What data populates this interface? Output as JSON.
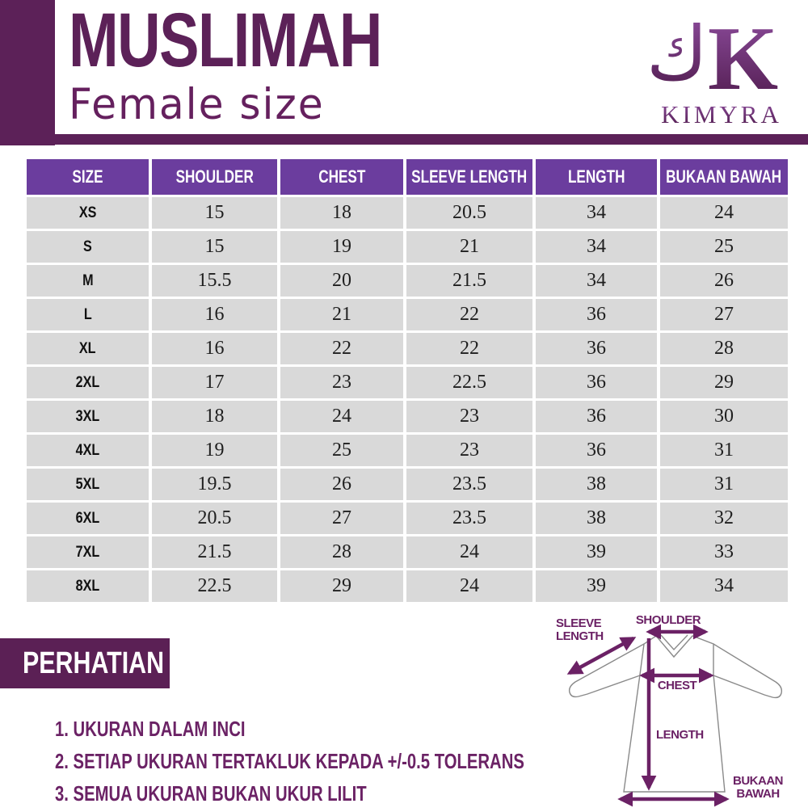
{
  "header": {
    "title": "MUSLIMAH",
    "subtitle": "Female size",
    "brand": "KIMYRA",
    "logo_glyph": "ك",
    "logo_letter": "K"
  },
  "colors": {
    "dark_purple": "#5C2158",
    "table_header_purple": "#6B3D9E",
    "row_gray": "#D9D9D9",
    "notes_purple": "#6B2265",
    "arrow_purple": "#6B2165"
  },
  "table": {
    "columns": [
      "SIZE",
      "SHOULDER",
      "CHEST",
      "SLEEVE LENGTH",
      "LENGTH",
      "BUKAAN BAWAH"
    ],
    "rows": [
      [
        "XS",
        "15",
        "18",
        "20.5",
        "34",
        "24"
      ],
      [
        "S",
        "15",
        "19",
        "21",
        "34",
        "25"
      ],
      [
        "M",
        "15.5",
        "20",
        "21.5",
        "34",
        "26"
      ],
      [
        "L",
        "16",
        "21",
        "22",
        "36",
        "27"
      ],
      [
        "XL",
        "16",
        "22",
        "22",
        "36",
        "28"
      ],
      [
        "2XL",
        "17",
        "23",
        "22.5",
        "36",
        "29"
      ],
      [
        "3XL",
        "18",
        "24",
        "23",
        "36",
        "30"
      ],
      [
        "4XL",
        "19",
        "25",
        "23",
        "36",
        "31"
      ],
      [
        "5XL",
        "19.5",
        "26",
        "23.5",
        "38",
        "31"
      ],
      [
        "6XL",
        "20.5",
        "27",
        "23.5",
        "38",
        "32"
      ],
      [
        "7XL",
        "21.5",
        "28",
        "24",
        "39",
        "33"
      ],
      [
        "8XL",
        "22.5",
        "29",
        "24",
        "39",
        "34"
      ]
    ]
  },
  "notes": {
    "heading": "PERHATIAN",
    "items": [
      "1. UKURAN DALAM INCI",
      "2. SETIAP UKURAN TERTAKLUK KEPADA +/-0.5 TOLERANS",
      "3. SEMUA UKURAN BUKAN UKUR LILIT"
    ]
  },
  "diagram": {
    "shoulder": "SHOULDER",
    "sleeve_line1": "SLEEVE",
    "sleeve_line2": "LENGTH",
    "chest": "CHEST",
    "length": "LENGTH",
    "bukaan_line1": "BUKAAN",
    "bukaan_line2": "BAWAH"
  }
}
